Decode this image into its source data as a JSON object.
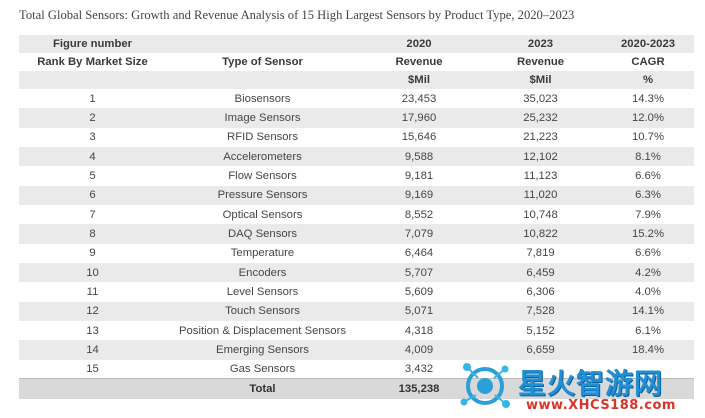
{
  "caption": "Total Global Sensors: Growth and Revenue Analysis of 15 High Largest Sensors by Product Type, 2020–2023",
  "header": {
    "row1": [
      "Figure number",
      "",
      "2020",
      "2023",
      "2020-2023"
    ],
    "row2": [
      "Rank By Market Size",
      "Type of Sensor",
      "Revenue",
      "Revenue",
      "CAGR"
    ],
    "row3": [
      "",
      "",
      "$Mil",
      "$Mil",
      "%"
    ]
  },
  "rows": [
    {
      "rank": "1",
      "type": "Biosensors",
      "rev2020": "23,453",
      "rev2023": "35,023",
      "cagr": "14.3%"
    },
    {
      "rank": "2",
      "type": "Image Sensors",
      "rev2020": "17,960",
      "rev2023": "25,232",
      "cagr": "12.0%"
    },
    {
      "rank": "3",
      "type": "RFID Sensors",
      "rev2020": "15,646",
      "rev2023": "21,223",
      "cagr": "10.7%"
    },
    {
      "rank": "4",
      "type": "Accelerometers",
      "rev2020": "9,588",
      "rev2023": "12,102",
      "cagr": "8.1%"
    },
    {
      "rank": "5",
      "type": "Flow Sensors",
      "rev2020": "9,181",
      "rev2023": "11,123",
      "cagr": "6.6%"
    },
    {
      "rank": "6",
      "type": "Pressure Sensors",
      "rev2020": "9,169",
      "rev2023": "11,020",
      "cagr": "6.3%"
    },
    {
      "rank": "7",
      "type": "Optical Sensors",
      "rev2020": "8,552",
      "rev2023": "10,748",
      "cagr": "7.9%"
    },
    {
      "rank": "8",
      "type": "DAQ Sensors",
      "rev2020": "7,079",
      "rev2023": "10,822",
      "cagr": "15.2%"
    },
    {
      "rank": "9",
      "type": "Temperature",
      "rev2020": "6,464",
      "rev2023": "7,819",
      "cagr": "6.6%"
    },
    {
      "rank": "10",
      "type": "Encoders",
      "rev2020": "5,707",
      "rev2023": "6,459",
      "cagr": "4.2%"
    },
    {
      "rank": "11",
      "type": "Level Sensors",
      "rev2020": "5,609",
      "rev2023": "6,306",
      "cagr": "4.0%"
    },
    {
      "rank": "12",
      "type": "Touch Sensors",
      "rev2020": "5,071",
      "rev2023": "7,528",
      "cagr": "14.1%"
    },
    {
      "rank": "13",
      "type": "Position & Displacement Sensors",
      "rev2020": "4,318",
      "rev2023": "5,152",
      "cagr": "6.1%"
    },
    {
      "rank": "14",
      "type": "Emerging Sensors",
      "rev2020": "4,009",
      "rev2023": "6,659",
      "cagr": "18.4%"
    },
    {
      "rank": "15",
      "type": "Gas Sensors",
      "rev2020": "3,432",
      "rev2023": "",
      "cagr": ""
    }
  ],
  "total": {
    "label": "Total",
    "rev2020": "135,238",
    "rev2023": "",
    "cagr": ""
  },
  "watermark": {
    "text": "星火智游网",
    "url": "www.XHCS188.com",
    "logo_icon": "network-globe-icon",
    "colors": {
      "text": "#1f8fd6",
      "url": "#d8342a",
      "logo": "#2a9fd8"
    }
  }
}
